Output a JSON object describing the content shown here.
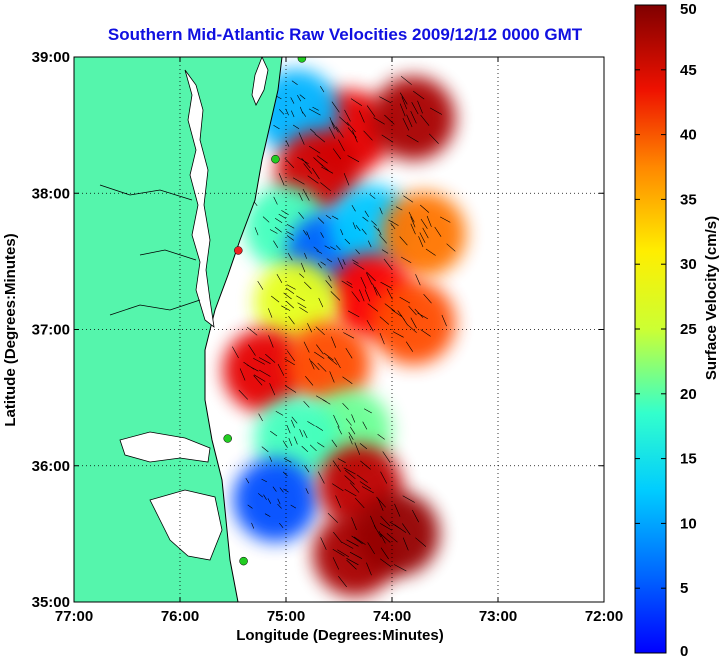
{
  "chart_data": {
    "type": "heatmap",
    "title": "Southern Mid-Atlantic Raw Velocities 2009/12/12 0000 GMT",
    "xlabel": "Longitude (Degrees:Minutes)",
    "ylabel": "Latitude (Degrees:Minutes)",
    "xlim": [
      -77,
      -72
    ],
    "ylim": [
      35,
      39
    ],
    "x_ticks": [
      {
        "value": -77,
        "label": "77:00"
      },
      {
        "value": -76,
        "label": "76:00"
      },
      {
        "value": -75,
        "label": "75:00"
      },
      {
        "value": -74,
        "label": "74:00"
      },
      {
        "value": -73,
        "label": "73:00"
      },
      {
        "value": -72,
        "label": "72:00"
      }
    ],
    "y_ticks": [
      {
        "value": 35,
        "label": "35:00"
      },
      {
        "value": 36,
        "label": "36:00"
      },
      {
        "value": 37,
        "label": "37:00"
      },
      {
        "value": 38,
        "label": "38:00"
      },
      {
        "value": 39,
        "label": "39:00"
      }
    ],
    "grid": true,
    "colorbar": {
      "label": "Surface Velocity (cm/s)",
      "range": [
        0,
        50
      ],
      "ticks": [
        "0",
        "5",
        "10",
        "15",
        "20",
        "25",
        "30",
        "35",
        "40",
        "45",
        "50"
      ],
      "colormap": "jet"
    },
    "land_color": "#55f5ac",
    "velocity_regions": [
      {
        "lon": -74.4,
        "lat": 38.45,
        "speed": 45
      },
      {
        "lon": -73.8,
        "lat": 38.55,
        "speed": 48
      },
      {
        "lon": -74.9,
        "lat": 38.6,
        "speed": 15
      },
      {
        "lon": -74.7,
        "lat": 38.15,
        "speed": 46
      },
      {
        "lon": -75.0,
        "lat": 37.75,
        "speed": 22
      },
      {
        "lon": -74.6,
        "lat": 37.55,
        "speed": 11
      },
      {
        "lon": -74.2,
        "lat": 37.75,
        "speed": 16
      },
      {
        "lon": -73.7,
        "lat": 37.7,
        "speed": 38
      },
      {
        "lon": -74.2,
        "lat": 37.25,
        "speed": 44
      },
      {
        "lon": -73.8,
        "lat": 37.05,
        "speed": 40
      },
      {
        "lon": -74.9,
        "lat": 37.2,
        "speed": 30
      },
      {
        "lon": -75.2,
        "lat": 36.7,
        "speed": 45
      },
      {
        "lon": -74.6,
        "lat": 36.75,
        "speed": 40
      },
      {
        "lon": -74.4,
        "lat": 36.25,
        "speed": 24
      },
      {
        "lon": -74.9,
        "lat": 36.2,
        "speed": 22
      },
      {
        "lon": -75.1,
        "lat": 35.75,
        "speed": 10
      },
      {
        "lon": -74.3,
        "lat": 35.85,
        "speed": 47
      },
      {
        "lon": -74.35,
        "lat": 35.35,
        "speed": 48
      },
      {
        "lon": -73.95,
        "lat": 35.5,
        "speed": 49
      }
    ],
    "buoys": [
      {
        "lon": -74.85,
        "lat": 38.99,
        "color": "#22cc22"
      },
      {
        "lon": -75.1,
        "lat": 38.25,
        "color": "#22cc22"
      },
      {
        "lon": -75.45,
        "lat": 37.58,
        "color": "#ee2222"
      },
      {
        "lon": -75.55,
        "lat": 36.2,
        "color": "#22cc22"
      },
      {
        "lon": -75.4,
        "lat": 35.3,
        "color": "#22cc22"
      }
    ]
  }
}
